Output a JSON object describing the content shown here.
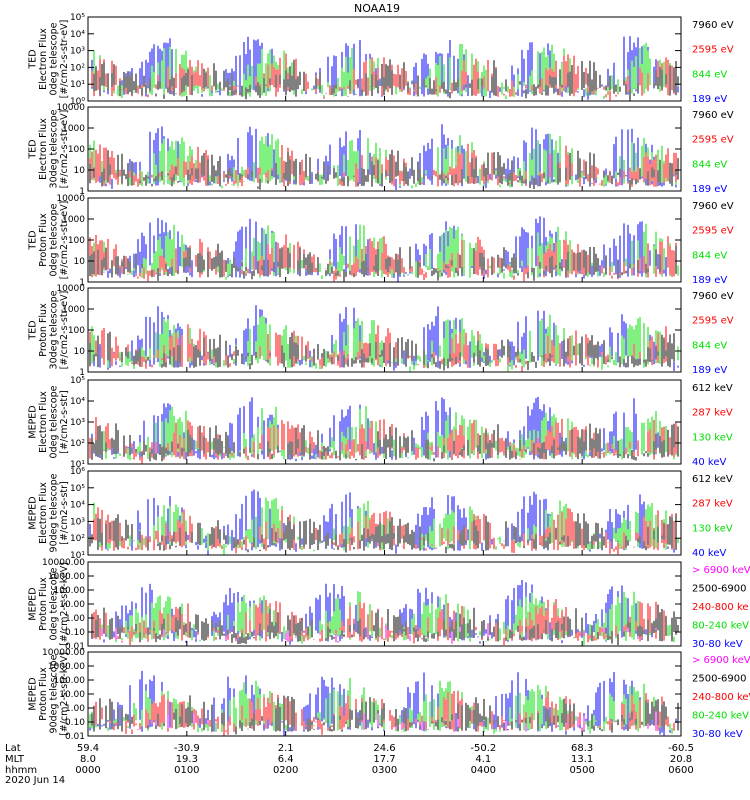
{
  "chart_data": {
    "type": "line",
    "title": "NOAA19",
    "x_rows": [
      {
        "name": "Lat",
        "values": [
          "59.4",
          "-30.9",
          "2.1",
          "24.6",
          "-50.2",
          "68.3",
          "-60.5"
        ]
      },
      {
        "name": "MLT",
        "values": [
          "8.0",
          "19.3",
          "6.4",
          "17.7",
          "4.1",
          "13.1",
          "20.8"
        ]
      },
      {
        "name": "hhmm",
        "values": [
          "0000",
          "0100",
          "0200",
          "0300",
          "0400",
          "0500",
          "0600"
        ]
      }
    ],
    "date": "2020 Jun 14",
    "colors": {
      "blue": "#0000ff",
      "green": "#00e000",
      "red": "#ff0000",
      "black": "#000000",
      "magenta": "#ff00ff"
    },
    "panels": [
      {
        "id": "ted-e-0",
        "ylabel": [
          "TED",
          "Electron Flux",
          "0deg telescope",
          "[#/cm2-s-str-eV]"
        ],
        "yscale": "log",
        "ylim": [
          1,
          100000
        ],
        "ticks": [
          "10⁰",
          "10¹",
          "10²",
          "10³",
          "10⁴",
          "10⁵"
        ],
        "series": [
          {
            "name": "7960 eV",
            "color": "#000000"
          },
          {
            "name": "2595 eV",
            "color": "#ff0000"
          },
          {
            "name": "844 eV",
            "color": "#00e000"
          },
          {
            "name": "189 eV",
            "color": "#0000ff"
          }
        ]
      },
      {
        "id": "ted-e-30",
        "ylabel": [
          "TED",
          "Electron Flux",
          "30deg telescope",
          "[#/cm2-s-str-eV]"
        ],
        "yscale": "log",
        "ylim": [
          1,
          10000
        ],
        "ticks": [
          "1",
          "10",
          "100",
          "1000",
          "10000"
        ],
        "series": [
          {
            "name": "7960 eV",
            "color": "#000000"
          },
          {
            "name": "2595 eV",
            "color": "#ff0000"
          },
          {
            "name": "844 eV",
            "color": "#00e000"
          },
          {
            "name": "189 eV",
            "color": "#0000ff"
          }
        ]
      },
      {
        "id": "ted-p-0",
        "ylabel": [
          "TED",
          "Proton Flux",
          "0deg telescope",
          "[#/cm2-s-str-eV]"
        ],
        "yscale": "log",
        "ylim": [
          1,
          10000
        ],
        "ticks": [
          "1",
          "10",
          "100",
          "1000",
          "10000"
        ],
        "series": [
          {
            "name": "7960 eV",
            "color": "#000000"
          },
          {
            "name": "2595 eV",
            "color": "#ff0000"
          },
          {
            "name": "844 eV",
            "color": "#00e000"
          },
          {
            "name": "189 eV",
            "color": "#0000ff"
          }
        ]
      },
      {
        "id": "ted-p-30",
        "ylabel": [
          "TED",
          "Proton Flux",
          "30deg telescope",
          "[#/cm2-s-str-eV]"
        ],
        "yscale": "log",
        "ylim": [
          1,
          10000
        ],
        "ticks": [
          "1",
          "10",
          "100",
          "1000",
          "10000"
        ],
        "series": [
          {
            "name": "7960 eV",
            "color": "#000000"
          },
          {
            "name": "2595 eV",
            "color": "#ff0000"
          },
          {
            "name": "844 eV",
            "color": "#00e000"
          },
          {
            "name": "189 eV",
            "color": "#0000ff"
          }
        ]
      },
      {
        "id": "mep-e-0",
        "ylabel": [
          "MEPED",
          "Electron Flux",
          "0deg telescope",
          "[#/cm2-s-str]"
        ],
        "yscale": "log",
        "ylim": [
          10,
          100000
        ],
        "ticks": [
          "10¹",
          "10²",
          "10³",
          "10⁴",
          "10⁵"
        ],
        "series": [
          {
            "name": "612 keV",
            "color": "#000000"
          },
          {
            "name": "287 keV",
            "color": "#ff0000"
          },
          {
            "name": "130 keV",
            "color": "#00e000"
          },
          {
            "name": "40 keV",
            "color": "#0000ff"
          }
        ]
      },
      {
        "id": "mep-e-90",
        "ylabel": [
          "MEPED",
          "Electron Flux",
          "90deg telescope",
          "[#/cm2-s-str]"
        ],
        "yscale": "log",
        "ylim": [
          10,
          1000000
        ],
        "ticks": [
          "10¹",
          "10²",
          "10³",
          "10⁴",
          "10⁵",
          "10⁶"
        ],
        "series": [
          {
            "name": "612 keV",
            "color": "#000000"
          },
          {
            "name": "287 keV",
            "color": "#ff0000"
          },
          {
            "name": "130 keV",
            "color": "#00e000"
          },
          {
            "name": "40 keV",
            "color": "#0000ff"
          }
        ]
      },
      {
        "id": "mep-p-0",
        "ylabel": [
          "MEPED",
          "Proton Flux",
          "0deg telescope",
          "[#/cm2-s-str-keV]"
        ],
        "yscale": "log",
        "ylim": [
          0.01,
          10000
        ],
        "ticks": [
          "0.01",
          "0.10",
          "1.00",
          "10.00",
          "100.00",
          "1000.00",
          "10000.00"
        ],
        "series": [
          {
            "name": "> 6900 keV",
            "color": "#ff00ff"
          },
          {
            "name": "2500-6900",
            "color": "#000000"
          },
          {
            "name": "240-800 ke",
            "color": "#ff0000"
          },
          {
            "name": "80-240 keV",
            "color": "#00e000"
          },
          {
            "name": "30-80 keV",
            "color": "#0000ff"
          }
        ]
      },
      {
        "id": "mep-p-90",
        "ylabel": [
          "MEPED",
          "Proton Flux",
          "90deg telescope",
          "[#/cm2-s-str-keV]"
        ],
        "yscale": "log",
        "ylim": [
          0.01,
          10000
        ],
        "ticks": [
          "0.01",
          "0.10",
          "1.00",
          "10.00",
          "100.00",
          "1000.00",
          "10000.00"
        ],
        "series": [
          {
            "name": "> 6900 keV",
            "color": "#ff00ff"
          },
          {
            "name": "2500-6900",
            "color": "#000000"
          },
          {
            "name": "240-800 keV",
            "color": "#ff0000"
          },
          {
            "name": "80-240 keV",
            "color": "#00e000"
          },
          {
            "name": "30-80 keV",
            "color": "#0000ff"
          }
        ]
      }
    ]
  }
}
